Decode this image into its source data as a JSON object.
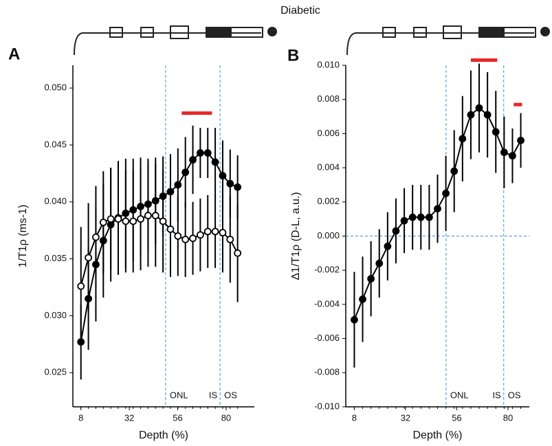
{
  "title": "Diabetic",
  "chart_data": [
    {
      "type": "line",
      "panel": "A",
      "x_label": "Depth (%)",
      "y_label": "1/T1ρ (ms-1)",
      "xlim": [
        4,
        94
      ],
      "xticks": [
        8,
        32,
        56,
        80
      ],
      "ylim": [
        0.022,
        0.052
      ],
      "yticks": [
        {
          "value": 0.025,
          "label": "0.025"
        },
        {
          "value": 0.03,
          "label": "0.030"
        },
        {
          "value": 0.035,
          "label": "0.035"
        },
        {
          "value": 0.04,
          "label": "0.040"
        },
        {
          "value": 0.045,
          "label": "0.045"
        },
        {
          "value": 0.05,
          "label": "0.050"
        }
      ],
      "vlines": [
        50,
        77
      ],
      "regions": [
        "ONL",
        "IS",
        "OS"
      ],
      "significance_bars": [
        {
          "x": [
            58,
            73
          ],
          "y": 0.0478
        }
      ],
      "significance_color": "#e8262a",
      "x": [
        8,
        11.7,
        15.4,
        19.1,
        22.8,
        26.5,
        30.2,
        33.9,
        37.6,
        41.3,
        45,
        48.7,
        52.4,
        56.1,
        59.8,
        63.5,
        67.2,
        70.9,
        74.6,
        78.3,
        82,
        85.7
      ],
      "series": [
        {
          "marker": "filled",
          "color": "#000000",
          "values": [
            0.0277,
            0.0315,
            0.0345,
            0.0366,
            0.038,
            0.0386,
            0.039,
            0.0393,
            0.0396,
            0.0398,
            0.0401,
            0.0405,
            0.0409,
            0.0415,
            0.0426,
            0.0437,
            0.0443,
            0.0443,
            0.0435,
            0.0423,
            0.0416,
            0.0413
          ],
          "errors": [
            0.0033,
            0.0045,
            0.005,
            0.005,
            0.005,
            0.005,
            0.0048,
            0.0045,
            0.0043,
            0.004,
            0.0038,
            0.0035,
            0.0033,
            0.0032,
            0.0031,
            0.003,
            0.0022,
            0.0022,
            0.003,
            0.0031,
            0.003,
            0.0028
          ]
        },
        {
          "marker": "open",
          "color": "#000000",
          "values": [
            0.0326,
            0.0351,
            0.0369,
            0.0382,
            0.0385,
            0.0385,
            0.0383,
            0.0383,
            0.0385,
            0.0388,
            0.0388,
            0.0383,
            0.0376,
            0.037,
            0.0367,
            0.0368,
            0.0371,
            0.0374,
            0.0374,
            0.0373,
            0.0367,
            0.0355
          ],
          "errors": [
            0.0052,
            0.0048,
            0.0045,
            0.0045,
            0.0045,
            0.0045,
            0.0045,
            0.0045,
            0.0045,
            0.0045,
            0.0045,
            0.0045,
            0.0042,
            0.0035,
            0.0033,
            0.0032,
            0.0032,
            0.0032,
            0.0032,
            0.0035,
            0.0038,
            0.0043
          ]
        }
      ]
    },
    {
      "type": "line",
      "panel": "B",
      "x_label": "Depth (%)",
      "y_label": "Δ1/T1ρ (D-L, a.u.)",
      "xlim": [
        4,
        90
      ],
      "xticks": [
        8,
        32,
        56,
        80
      ],
      "ylim": [
        -0.01,
        0.01
      ],
      "yticks": [
        {
          "value": -0.01,
          "label": "-0.010"
        },
        {
          "value": -0.008,
          "label": "-0.008"
        },
        {
          "value": -0.006,
          "label": "-0.006"
        },
        {
          "value": -0.004,
          "label": "-0.004"
        },
        {
          "value": -0.002,
          "label": "-0.002"
        },
        {
          "value": 0,
          "label": "0.000"
        },
        {
          "value": 0.002,
          "label": "0.002"
        },
        {
          "value": 0.004,
          "label": "0.004"
        },
        {
          "value": 0.006,
          "label": "0.006"
        },
        {
          "value": 0.008,
          "label": "0.008"
        },
        {
          "value": 0.01,
          "label": "0.010"
        }
      ],
      "vlines": [
        51,
        78
      ],
      "hline": 0,
      "regions": [
        "ONL",
        "IS",
        "OS"
      ],
      "significance_bars": [
        {
          "x": [
            62.6,
            75
          ],
          "y": 0.0103
        },
        {
          "x": [
            82.7,
            86.6
          ],
          "y": 0.0077
        }
      ],
      "significance_color": "#e8262a",
      "x": [
        8,
        11.9,
        15.8,
        19.7,
        23.6,
        27.5,
        31.4,
        35.3,
        39.2,
        43.1,
        47,
        50.9,
        54.8,
        58.7,
        62.6,
        66.5,
        70.4,
        74.3,
        78.2,
        82.1,
        86
      ],
      "series": [
        {
          "marker": "filled",
          "color": "#000000",
          "values": [
            -0.0049,
            -0.0037,
            -0.0025,
            -0.0016,
            -0.0006,
            0.0003,
            0.0009,
            0.0011,
            0.0011,
            0.0011,
            0.0016,
            0.0025,
            0.0038,
            0.0057,
            0.0071,
            0.0075,
            0.0071,
            0.0061,
            0.0049,
            0.0047,
            0.0056
          ],
          "errors": [
            0.0028,
            0.0025,
            0.0022,
            0.002,
            0.002,
            0.0019,
            0.0019,
            0.0019,
            0.0019,
            0.0019,
            0.002,
            0.0022,
            0.0024,
            0.0025,
            0.0026,
            0.0026,
            0.0025,
            0.0024,
            0.0021,
            0.0016,
            0.0016
          ]
        }
      ]
    }
  ]
}
